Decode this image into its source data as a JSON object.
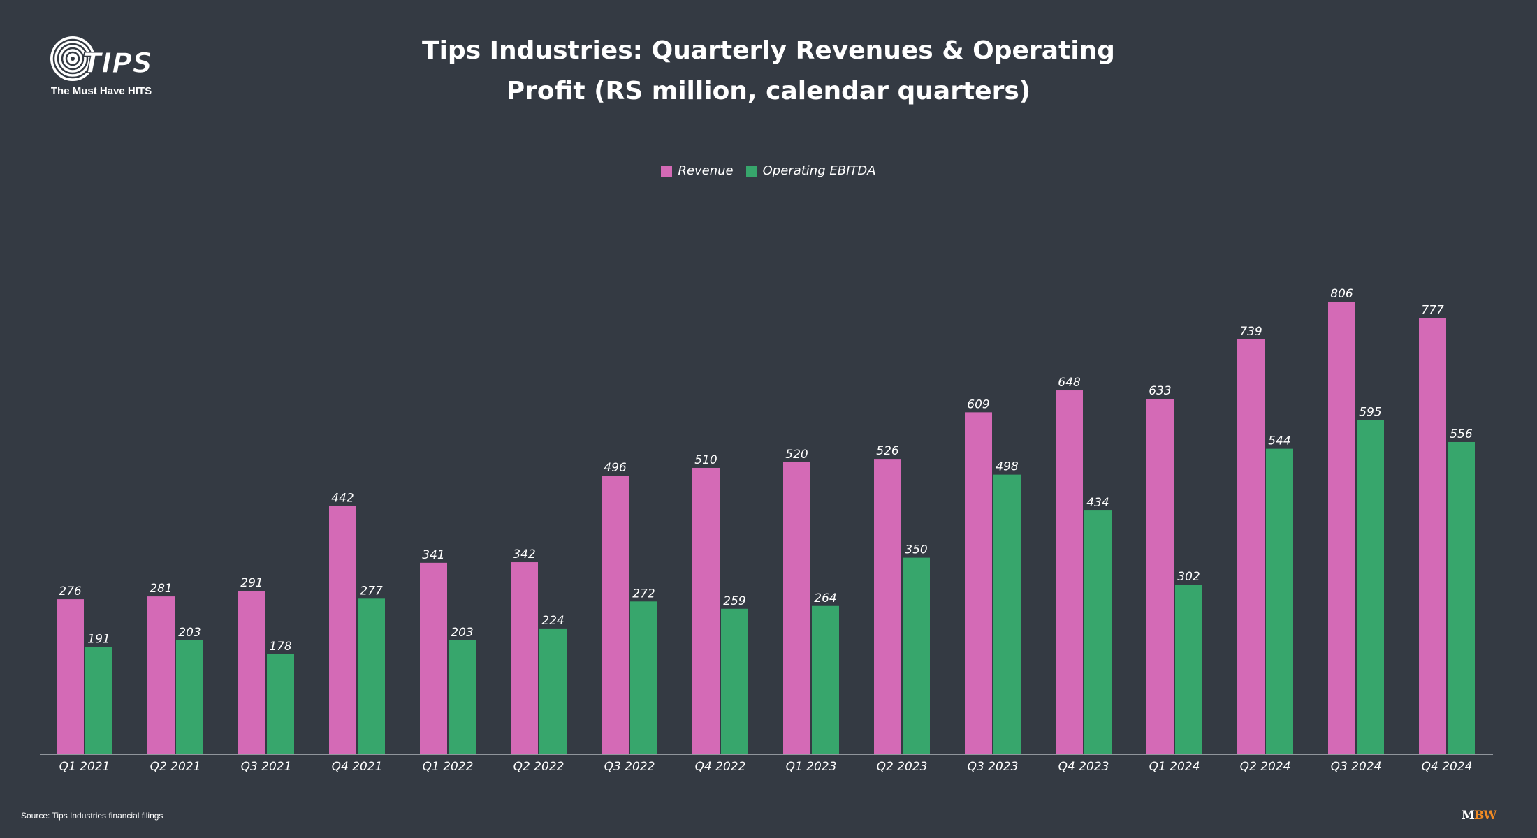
{
  "logo": {
    "tagline": "The Must Have HITS",
    "wordmark": "TIPS"
  },
  "footer": {
    "source": "Source: Tips Industries financial filings",
    "brand_m": "M",
    "brand_bw": "BW"
  },
  "colors": {
    "background": "#343a43",
    "revenue": "#d46ab6",
    "ebitda": "#37a66c",
    "brand_accent": "#f08a24"
  },
  "chart_data": {
    "type": "bar",
    "title": "Tips Industries: Quarterly Revenues & Operating Profit (RS million, calendar quarters)",
    "title_lines": [
      "Tips Industries: Quarterly Revenues & Operating",
      "Profit (RS million, calendar quarters)"
    ],
    "categories": [
      "Q1 2021",
      "Q2 2021",
      "Q3 2021",
      "Q4 2021",
      "Q1 2022",
      "Q2 2022",
      "Q3 2022",
      "Q4 2022",
      "Q1 2023",
      "Q2 2023",
      "Q3 2023",
      "Q4 2023",
      "Q1 2024",
      "Q2 2024",
      "Q3 2024",
      "Q4 2024"
    ],
    "series": [
      {
        "name": "Revenue",
        "color": "#d46ab6",
        "values": [
          276,
          281,
          291,
          442,
          341,
          342,
          496,
          510,
          520,
          526,
          609,
          648,
          633,
          739,
          806,
          777
        ]
      },
      {
        "name": "Operating EBITDA",
        "color": "#37a66c",
        "values": [
          191,
          203,
          178,
          277,
          203,
          224,
          272,
          259,
          264,
          350,
          498,
          434,
          302,
          544,
          595,
          556
        ]
      }
    ],
    "ylim": [
      0,
      806
    ],
    "grid": false,
    "legend_position": "top-center",
    "data_labels": true
  }
}
